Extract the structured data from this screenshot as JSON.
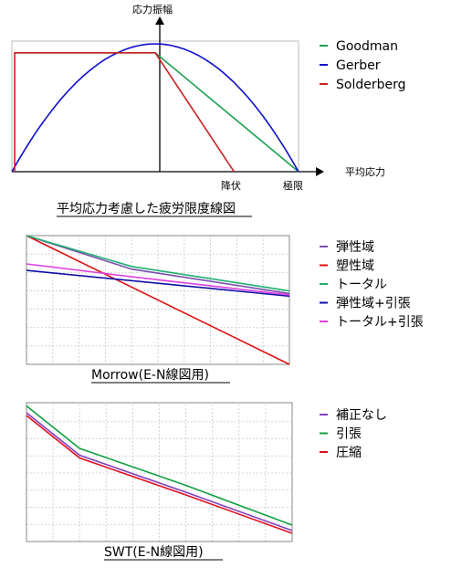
{
  "chart_data": [
    {
      "type": "line",
      "caption": "平均応力考慮した疲労限度線図",
      "y_axis_label": "応力振幅",
      "x_axis_label": "平均応力",
      "x_ticks": [
        {
          "label": "降伏",
          "value": 0.55
        },
        {
          "label": "極限",
          "value": 1.0
        }
      ],
      "xlim": [
        -1,
        1
      ],
      "ylim": [
        0,
        1
      ],
      "series": [
        {
          "name": "Goodman",
          "color": "#1aa050",
          "points": [
            [
              -0.98,
              0.93
            ],
            [
              0,
              0.93
            ],
            [
              1,
              0
            ]
          ]
        },
        {
          "name": "Gerber",
          "color": "#1010cc",
          "points": "parabola"
        },
        {
          "name": "Solderberg",
          "color": "#cc2020",
          "points": [
            [
              -0.98,
              0
            ],
            [
              -0.98,
              0.93
            ],
            [
              0,
              0.93
            ],
            [
              0.55,
              0
            ]
          ]
        }
      ]
    },
    {
      "type": "line",
      "caption": "Morrow(E-N線図用)",
      "xlim": [
        0,
        1
      ],
      "ylim": [
        0,
        1
      ],
      "grid": true,
      "series": [
        {
          "name": "弾性域",
          "color": "#7a4fb0",
          "points": [
            [
              0,
              1
            ],
            [
              0.4,
              0.74
            ],
            [
              1,
              0.55
            ]
          ]
        },
        {
          "name": "塑性域",
          "color": "#dd1010",
          "points": [
            [
              0,
              1
            ],
            [
              1,
              0
            ]
          ]
        },
        {
          "name": "トータル",
          "color": "#20b070",
          "points": [
            [
              0,
              1
            ],
            [
              0.4,
              0.76
            ],
            [
              1,
              0.57
            ]
          ]
        },
        {
          "name": "弾性域+引張",
          "color": "#1010aa",
          "points": [
            [
              0,
              0.73
            ],
            [
              1,
              0.53
            ]
          ]
        },
        {
          "name": "トータル+引張",
          "color": "#e040e0",
          "points": [
            [
              0,
              0.78
            ],
            [
              0.4,
              0.68
            ],
            [
              1,
              0.54
            ]
          ]
        }
      ]
    },
    {
      "type": "line",
      "caption": "SWT(E-N線図用)",
      "xlim": [
        0,
        1
      ],
      "ylim": [
        0,
        1
      ],
      "grid": true,
      "series": [
        {
          "name": "補正なし",
          "color": "#8040c0",
          "points": [
            [
              0,
              0.94
            ],
            [
              0.2,
              0.63
            ],
            [
              0.6,
              0.36
            ],
            [
              1,
              0.08
            ]
          ]
        },
        {
          "name": "引張",
          "color": "#10a040",
          "points": [
            [
              0,
              0.99
            ],
            [
              0.2,
              0.68
            ],
            [
              0.6,
              0.41
            ],
            [
              1,
              0.12
            ]
          ]
        },
        {
          "name": "圧縮",
          "color": "#e01020",
          "points": [
            [
              0,
              0.92
            ],
            [
              0.2,
              0.61
            ],
            [
              0.6,
              0.34
            ],
            [
              1,
              0.06
            ]
          ]
        }
      ]
    }
  ]
}
